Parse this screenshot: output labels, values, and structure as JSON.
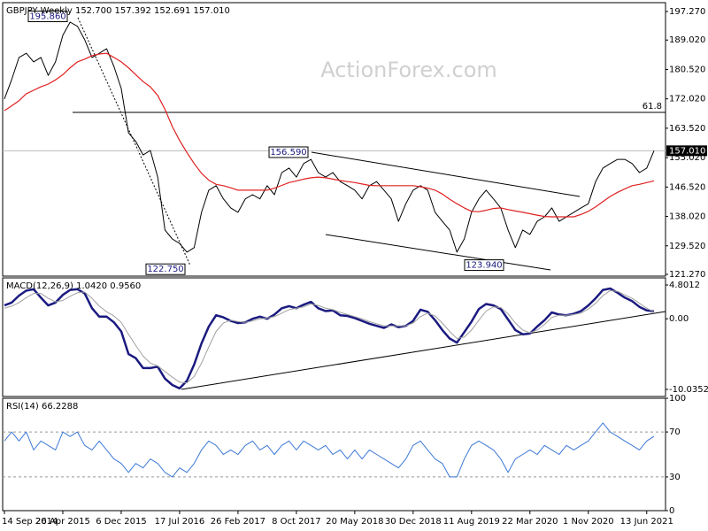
{
  "chart_data": [
    {
      "type": "line",
      "title": "GBPJPY Weekly  152.700 157.392 152.691 157.010",
      "watermark": "ActionForex.com",
      "ylim": [
        120.76,
        199.83
      ],
      "yticks": [
        {
          "value": 197.27,
          "label": "197.270"
        },
        {
          "value": 189.02,
          "label": "189.020"
        },
        {
          "value": 180.52,
          "label": "180.520"
        },
        {
          "value": 172.02,
          "label": "172.020"
        },
        {
          "value": 163.52,
          "label": "163.520"
        },
        {
          "value": 155.02,
          "label": "155.020"
        },
        {
          "value": 146.52,
          "label": "146.520"
        },
        {
          "value": 138.02,
          "label": "138.020"
        },
        {
          "value": 129.52,
          "label": "129.520"
        },
        {
          "value": 121.27,
          "label": "121.270"
        }
      ],
      "last_price": {
        "value": 157.01,
        "label": "157.010"
      },
      "fib_line": 168.1,
      "fib_label": "61.8",
      "annotations": [
        {
          "value": 195.86,
          "label": "195.860"
        },
        {
          "value": 156.59,
          "label": "156.590"
        },
        {
          "value": 122.75,
          "label": "122.750"
        },
        {
          "value": 123.94,
          "label": "123.940"
        }
      ],
      "series": [
        {
          "color": "#000000",
          "values": [
            172,
            177.6,
            184,
            185.2,
            182.7,
            184,
            178.8,
            182.7,
            190.4,
            194.2,
            193,
            189.1,
            184,
            185.2,
            186.5,
            181.4,
            175,
            162.2,
            159.7,
            155.8,
            157.1,
            149.4,
            134.1,
            131.5,
            130.2,
            127.7,
            129,
            139.2,
            145.6,
            146.9,
            143.1,
            140.5,
            139.2,
            143.1,
            144.3,
            143.1,
            146.9,
            144.3,
            150.7,
            152,
            149.4,
            153.3,
            154.5,
            150.7,
            149.4,
            150.7,
            148.1,
            146.9,
            145.6,
            143.1,
            146.9,
            148.1,
            145.6,
            143.1,
            136.6,
            141.7,
            145.6,
            146.9,
            145.6,
            139.2,
            136.6,
            134.1,
            127.7,
            131.5,
            139.2,
            143.1,
            145.6,
            143.1,
            140.5,
            134.1,
            129,
            134.1,
            132.8,
            136.6,
            137.9,
            140.5,
            136.6,
            137.9,
            139.2,
            140.5,
            141.7,
            148.1,
            152,
            153.3,
            154.5,
            154.5,
            153.3,
            150.7,
            152,
            157.01
          ]
        },
        {
          "color": "#e02020",
          "values": [
            168.6,
            170,
            171.5,
            173.5,
            174.5,
            175.5,
            176.3,
            177.5,
            179,
            181,
            182.7,
            183.5,
            184.5,
            185,
            185.2,
            184,
            182.7,
            181,
            179,
            177,
            175.5,
            173,
            169,
            164,
            160,
            156.5,
            153.3,
            150.5,
            148.5,
            147.3,
            146.9,
            146.3,
            145.6,
            145.6,
            145.6,
            145.6,
            145.6,
            146.2,
            147,
            147.8,
            148.3,
            148.8,
            149.2,
            149.4,
            149.2,
            148.8,
            148.4,
            148.1,
            147.8,
            147.4,
            147,
            146.9,
            146.9,
            146.9,
            146.9,
            146.9,
            146.9,
            146.6,
            146.2,
            145.6,
            144.5,
            143,
            141.7,
            140.5,
            139.5,
            139.4,
            139.8,
            140.3,
            140.5,
            140,
            139.6,
            139.2,
            138.8,
            138.4,
            138,
            137.9,
            137.9,
            137.9,
            137.9,
            138.6,
            139.5,
            140.8,
            142.3,
            143.8,
            145,
            146,
            146.9,
            147.3,
            147.8,
            148.3
          ]
        }
      ]
    },
    {
      "type": "line",
      "title": "MACD(12,26,9) 1.0420 0.9560",
      "ylim": [
        -11.04,
        5.81
      ],
      "yticks": [
        4.8012,
        {
          "value": 0,
          "label": "0.00"
        },
        -10.0352
      ],
      "series": [
        {
          "color": "#1a1a80",
          "values": [
            1.9,
            2.3,
            3.3,
            4.0,
            4.2,
            3.0,
            1.9,
            2.3,
            3.4,
            4.1,
            4.2,
            3.6,
            1.5,
            0.3,
            0.3,
            -0.5,
            -1.8,
            -5,
            -5.6,
            -7,
            -7,
            -6.8,
            -8.5,
            -9.4,
            -9.9,
            -8.8,
            -6.5,
            -3.5,
            -1.1,
            0.5,
            0.2,
            -0.3,
            -0.6,
            -0.5,
            0,
            0.3,
            0,
            0.6,
            1.5,
            1.8,
            1.5,
            2,
            2.4,
            1.5,
            1.1,
            1.2,
            0.5,
            0.4,
            0.1,
            -0.3,
            -0.7,
            -1,
            -1.3,
            -0.8,
            -1.2,
            -1,
            -0.3,
            1.3,
            1,
            -0.2,
            -1.6,
            -2.8,
            -3.4,
            -1.9,
            -0.4,
            1.4,
            2.1,
            1.9,
            1.4,
            -0.1,
            -1.6,
            -2.2,
            -2.1,
            -1.1,
            -0.2,
            0.9,
            0.6,
            0.5,
            0.7,
            1.1,
            1.9,
            2.9,
            4.1,
            4.3,
            3.7,
            3.0,
            2.5,
            1.7,
            1.2,
            1.042
          ]
        },
        {
          "color": "#a0a0a0",
          "values": [
            1.5,
            1.8,
            2.3,
            3.0,
            3.6,
            3.6,
            2.9,
            2.4,
            2.6,
            3.2,
            3.7,
            3.8,
            2.9,
            1.8,
            1.0,
            0.4,
            -0.5,
            -2.2,
            -3.8,
            -5.3,
            -6.3,
            -6.7,
            -7.5,
            -8.3,
            -9.0,
            -9.1,
            -8.2,
            -6.3,
            -4.0,
            -1.8,
            -0.6,
            -0.2,
            -0.4,
            -0.5,
            -0.3,
            0,
            0.1,
            0.3,
            0.8,
            1.3,
            1.5,
            1.7,
            2.1,
            1.9,
            1.5,
            1.3,
            0.9,
            0.6,
            0.3,
            0,
            -0.4,
            -0.7,
            -1.0,
            -1.0,
            -1.0,
            -1.0,
            -0.6,
            0.3,
            0.8,
            0.4,
            -0.6,
            -1.8,
            -2.8,
            -2.6,
            -1.6,
            -0.2,
            1.1,
            1.7,
            1.6,
            0.7,
            -0.6,
            -1.6,
            -2.0,
            -1.6,
            -0.8,
            0.2,
            0.5,
            0.5,
            0.6,
            0.8,
            1.4,
            2.2,
            3.3,
            4.0,
            3.9,
            3.4,
            2.9,
            2.2,
            1.5,
            0.956
          ]
        }
      ]
    },
    {
      "type": "line",
      "title": "RSI(14) 66.2288",
      "ylim": [
        0,
        100
      ],
      "yticks": [
        100,
        70,
        30,
        0
      ],
      "grid": true,
      "categories": [
        "14 Sep 2014",
        null,
        null,
        null,
        null,
        null,
        null,
        null,
        "26 Apr 2015",
        null,
        null,
        null,
        null,
        null,
        null,
        null,
        "6 Dec 2015",
        null,
        null,
        null,
        null,
        null,
        null,
        null,
        "17 Jul 2016",
        null,
        null,
        null,
        null,
        null,
        null,
        null,
        "26 Feb 2017",
        null,
        null,
        null,
        null,
        null,
        null,
        null,
        "8 Oct 2017",
        null,
        null,
        null,
        null,
        null,
        null,
        null,
        "20 May 2018",
        null,
        null,
        null,
        null,
        null,
        null,
        null,
        "30 Dec 2018",
        null,
        null,
        null,
        null,
        null,
        null,
        null,
        "11 Aug 2019",
        null,
        null,
        null,
        null,
        null,
        null,
        null,
        "22 Mar 2020",
        null,
        null,
        null,
        null,
        null,
        null,
        null,
        "1 Nov 2020",
        null,
        null,
        null,
        null,
        null,
        null,
        null,
        "13 Jun 2021",
        null
      ],
      "series": [
        {
          "color": "#3c78d8",
          "values": [
            62,
            70,
            62,
            70,
            54,
            62,
            58,
            54,
            70,
            66,
            70,
            58,
            54,
            62,
            54,
            46,
            42,
            34,
            42,
            38,
            46,
            42,
            34,
            30,
            38,
            34,
            42,
            54,
            62,
            58,
            50,
            54,
            50,
            58,
            62,
            54,
            58,
            50,
            58,
            62,
            54,
            62,
            58,
            54,
            58,
            50,
            54,
            46,
            54,
            46,
            54,
            50,
            46,
            42,
            38,
            46,
            58,
            62,
            54,
            46,
            42,
            30,
            30,
            46,
            58,
            62,
            58,
            54,
            46,
            34,
            46,
            50,
            54,
            50,
            58,
            54,
            50,
            58,
            54,
            58,
            62,
            70,
            78,
            70,
            66,
            62,
            58,
            54,
            62,
            66.2288
          ]
        }
      ]
    }
  ]
}
